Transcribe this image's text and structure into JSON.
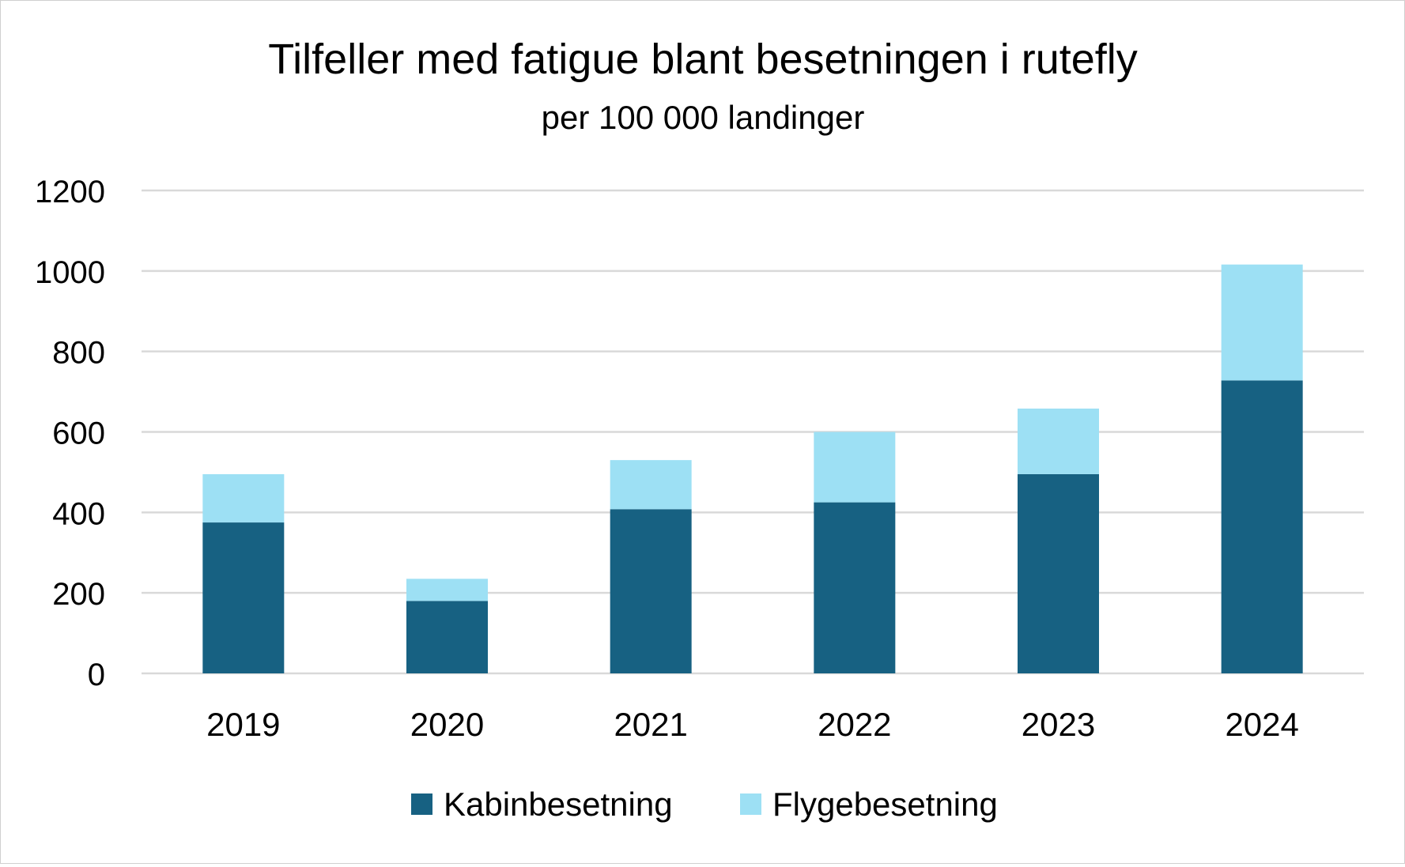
{
  "chart_data": {
    "type": "bar",
    "stacked": true,
    "title": "Tilfeller med fatigue blant besetningen i rutefly",
    "subtitle": "per 100 000 landinger",
    "xlabel": "",
    "ylabel": "",
    "categories": [
      "2019",
      "2020",
      "2021",
      "2022",
      "2023",
      "2024"
    ],
    "ylim": [
      0,
      1200
    ],
    "yticks": [
      0,
      200,
      400,
      600,
      800,
      1000,
      1200
    ],
    "grid": true,
    "legend_position": "bottom-center",
    "series": [
      {
        "name": "Kabinbesetning",
        "color": "#176182",
        "values": [
          375,
          180,
          408,
          425,
          495,
          728
        ]
      },
      {
        "name": "Flygebesetning",
        "color": "#9de0f4",
        "values": [
          120,
          55,
          122,
          175,
          163,
          288
        ]
      }
    ]
  }
}
